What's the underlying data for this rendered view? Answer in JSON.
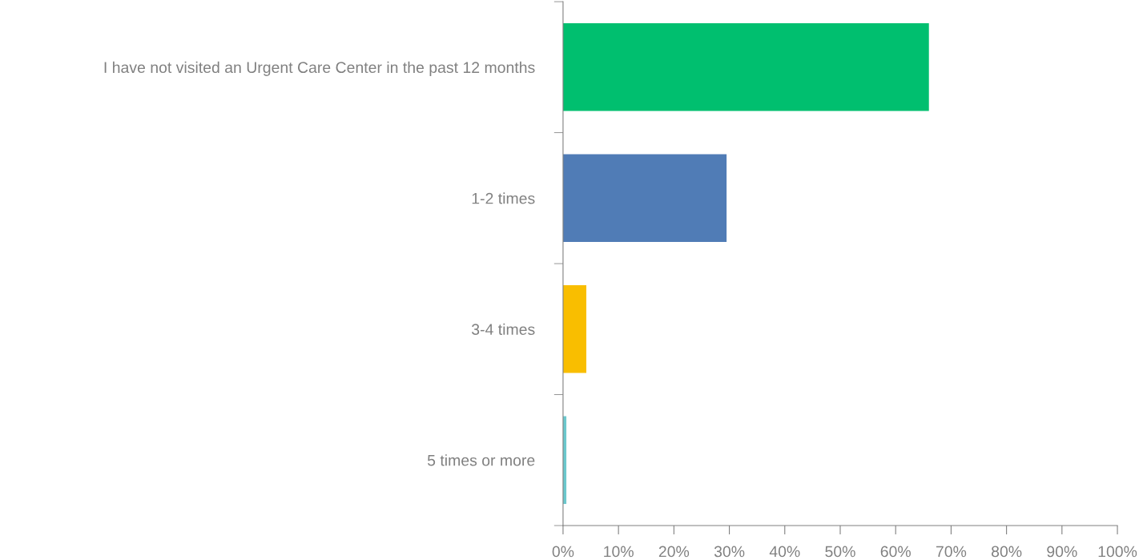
{
  "chart_data": {
    "type": "bar",
    "orientation": "horizontal",
    "categories": [
      "I have not visited an Urgent Care Center in the past 12 months",
      "1-2 times",
      "3-4 times",
      "5 times or more"
    ],
    "values": [
      66.0,
      29.5,
      4.2,
      0.6
    ],
    "colors": [
      "#00bf6f",
      "#507cb6",
      "#f9be00",
      "#6bc8cd"
    ],
    "xlim": [
      0,
      100
    ],
    "xticks": [
      {
        "value": 0,
        "label": "0%"
      },
      {
        "value": 10,
        "label": "10%"
      },
      {
        "value": 20,
        "label": "20%"
      },
      {
        "value": 30,
        "label": "30%"
      },
      {
        "value": 40,
        "label": "40%"
      },
      {
        "value": 50,
        "label": "50%"
      },
      {
        "value": 60,
        "label": "60%"
      },
      {
        "value": 70,
        "label": "70%"
      },
      {
        "value": 80,
        "label": "80%"
      },
      {
        "value": 90,
        "label": "90%"
      },
      {
        "value": 100,
        "label": "100%"
      }
    ],
    "grid": false,
    "legend": false
  }
}
